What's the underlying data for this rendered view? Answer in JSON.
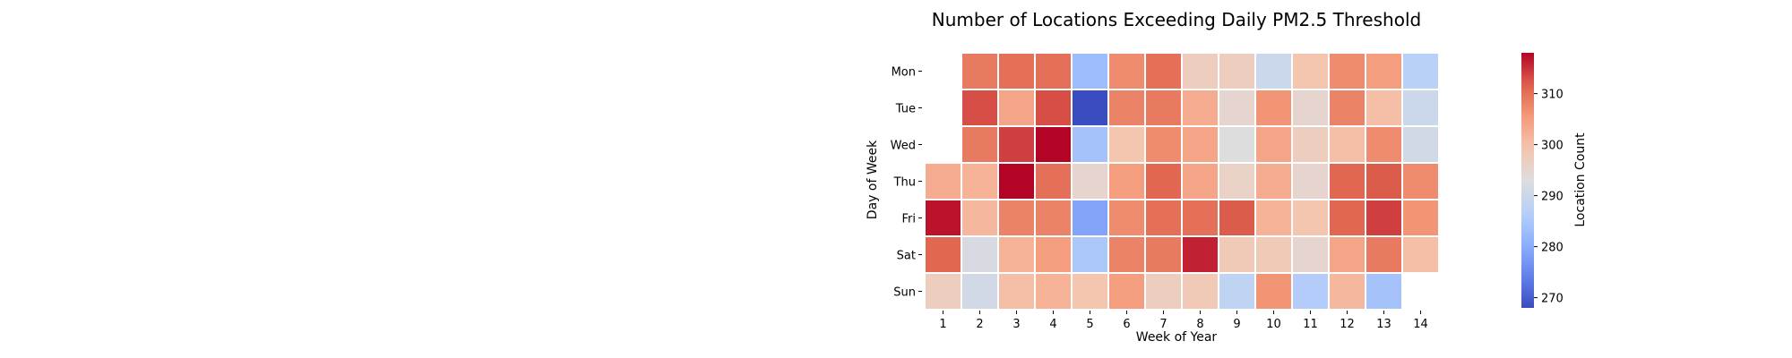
{
  "chart_data": {
    "type": "heatmap",
    "title": "Number of Locations Exceeding Daily PM2.5 Threshold",
    "xlabel": "Week of Year",
    "ylabel": "Day of Week",
    "colorbar_label": "Location Count",
    "colormap": "coolwarm",
    "vmin": 268,
    "vmax": 318,
    "colorbar_ticks": [
      270,
      280,
      290,
      300,
      310
    ],
    "x_categories": [
      "1",
      "2",
      "3",
      "4",
      "5",
      "6",
      "7",
      "8",
      "9",
      "10",
      "11",
      "12",
      "13",
      "14"
    ],
    "y_categories": [
      "Mon",
      "Tue",
      "Wed",
      "Thu",
      "Fri",
      "Sat",
      "Sun"
    ],
    "values": [
      [
        null,
        309,
        310,
        310,
        283,
        307,
        310,
        297,
        297,
        290,
        299,
        307,
        305,
        287
      ],
      [
        null,
        313,
        304,
        313,
        268,
        308,
        309,
        303,
        295,
        306,
        295,
        308,
        300,
        290
      ],
      [
        null,
        309,
        314,
        318,
        284,
        299,
        307,
        304,
        293,
        304,
        297,
        300,
        307,
        291
      ],
      [
        303,
        302,
        318,
        310,
        295,
        305,
        311,
        304,
        296,
        303,
        295,
        311,
        312,
        307
      ],
      [
        317,
        301,
        308,
        308,
        279,
        307,
        310,
        310,
        312,
        302,
        299,
        311,
        314,
        306
      ],
      [
        311,
        292,
        302,
        305,
        285,
        308,
        309,
        316,
        298,
        298,
        295,
        304,
        309,
        300
      ],
      [
        297,
        291,
        300,
        302,
        299,
        305,
        297,
        298,
        288,
        306,
        286,
        301,
        284,
        null
      ]
    ]
  }
}
